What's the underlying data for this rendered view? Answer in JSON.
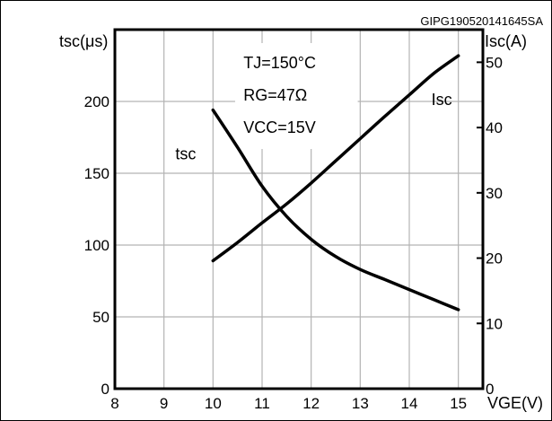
{
  "chart_data": {
    "type": "line",
    "code": "GIPG190520141645SA",
    "conditions": [
      "TJ=150°C",
      "RG=47Ω",
      "VCC=15V"
    ],
    "left_axis_label": "tsc(μs)",
    "right_axis_label": "Isc(A)",
    "x_axis_label": "VGE(V)",
    "x": [
      10,
      10.5,
      11,
      11.5,
      12,
      12.5,
      13,
      13.5,
      14,
      14.5,
      15
    ],
    "x_range": [
      8,
      15.5
    ],
    "x_ticks": [
      "8",
      "9",
      "10",
      "11",
      "12",
      "13",
      "14",
      "15"
    ],
    "ylim_left": [
      0,
      250
    ],
    "left_ticks": [
      "0",
      "50",
      "100",
      "150",
      "200"
    ],
    "ylim_right": [
      0,
      55
    ],
    "right_ticks": [
      "0",
      "10",
      "20",
      "30",
      "40",
      "50"
    ],
    "grid": true,
    "series": [
      {
        "name": "tsc",
        "axis": "left",
        "values": [
          194,
          168,
          141,
          120,
          104,
          92,
          83,
          76,
          69,
          62,
          55
        ]
      },
      {
        "name": "Isc",
        "axis": "right",
        "values": [
          19.6,
          22.4,
          25.4,
          28.3,
          31.5,
          34.9,
          38.3,
          41.7,
          45.0,
          48.3,
          51.0
        ]
      }
    ],
    "series_colors": {
      "tsc": "#000000",
      "Isc": "#000000"
    }
  }
}
